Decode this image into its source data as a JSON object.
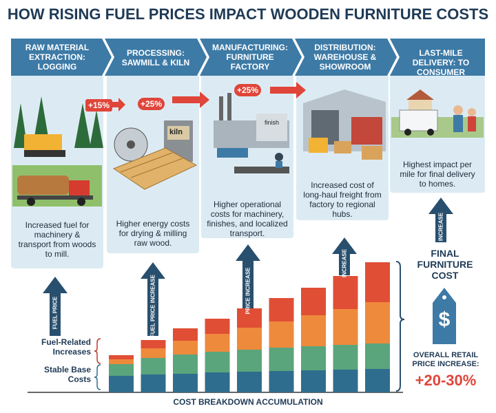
{
  "title": "HOW RISING FUEL PRICES IMPACT WOODEN FURNITURE COSTS",
  "stages": [
    {
      "header": "RAW MATERIAL EXTRACTION: LOGGING",
      "description": "Increased fuel for machinery & transport from woods to mill."
    },
    {
      "header": "PROCESSING: SAWMILL & KILN",
      "description": "Higher energy costs for drying & milling raw wood."
    },
    {
      "header": "MANUFACTURING: FURNITURE FACTORY",
      "description": "Higher operational costs for machinery, finishes, and localized transport."
    },
    {
      "header": "DISTRIBUTION: WAREHOUSE & SHOWROOM",
      "description": "Increased cost of long-haul freight from factory to regional hubs."
    },
    {
      "header": "LAST-MILE DELIVERY: TO CONSUMER",
      "description": "Highest impact per mile for final delivery to homes."
    }
  ],
  "increase_badges": [
    "+15%",
    "+25%",
    "+25%"
  ],
  "image_labels": [
    "kiln",
    "finish"
  ],
  "arrow_labels": [
    "FUEL PRICE",
    "FUEL PRICE INCREASE",
    "PRICE INCREASE",
    "INCREASE",
    "INCREASE"
  ],
  "chart": {
    "fuel_label": "Fuel-Related Increases",
    "base_label": "Stable Base Costs",
    "caption": "COST BREAKDOWN ACCUMULATION"
  },
  "final": {
    "title": "FINAL FURNITURE COST",
    "symbol": "$",
    "note": "OVERALL RETAIL PRICE INCREASE:",
    "range": "+20-30%"
  }
}
